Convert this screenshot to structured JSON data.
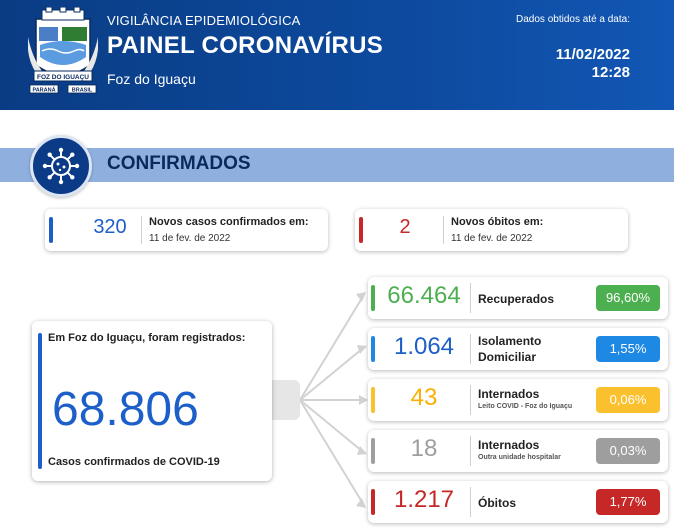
{
  "header": {
    "subtitle": "VIGILÂNCIA EPIDEMIOLÓGICA",
    "title": "PAINEL CORONAVÍRUS",
    "city": "Foz do Iguaçu",
    "data_label": "Dados obtidos até a data:",
    "date": "11/02/2022",
    "time": "12:28",
    "crest": {
      "icon": "city-crest-icon",
      "banner": "FOZ DO IGUAÇU",
      "left_tag": "PARANÁ",
      "right_tag": "BRASIL"
    }
  },
  "section": {
    "title": "CONFIRMADOS",
    "icon": "virus-icon"
  },
  "new_cases": {
    "value": "320",
    "label": "Novos casos confirmados em:",
    "date": "11 de fev. de 2022",
    "color": "#1d5fc8"
  },
  "new_deaths": {
    "value": "2",
    "label": "Novos óbitos em:",
    "date": "11 de fev. de 2022",
    "color": "#c62828"
  },
  "total": {
    "intro": "Em Foz do Iguaçu, foram registrados:",
    "value": "68.806",
    "caption": "Casos confirmados de COVID-19",
    "color": "#1d5fc8"
  },
  "outcomes": [
    {
      "value": "66.464",
      "label": "Recuperados",
      "label2": "",
      "note": "",
      "pct": "96,60%",
      "color": "#4caf50",
      "num_color": "#4caf50"
    },
    {
      "value": "1.064",
      "label": "Isolamento",
      "label2": "Domiciliar",
      "note": "",
      "pct": "1,55%",
      "color": "#1e88e5",
      "num_color": "#1d5fc8"
    },
    {
      "value": "43",
      "label": "Internados",
      "label2": "",
      "note": "Leito COVID - Foz do Iguaçu",
      "pct": "0,06%",
      "color": "#fbc02d",
      "num_color": "#f9b000"
    },
    {
      "value": "18",
      "label": "Internados",
      "label2": "",
      "note": "Outra unidade hospitalar",
      "pct": "0,03%",
      "color": "#9e9e9e",
      "num_color": "#9e9e9e"
    },
    {
      "value": "1.217",
      "label": "Óbitos",
      "label2": "",
      "note": "",
      "pct": "1,77%",
      "color": "#c62828",
      "num_color": "#c62828"
    }
  ]
}
